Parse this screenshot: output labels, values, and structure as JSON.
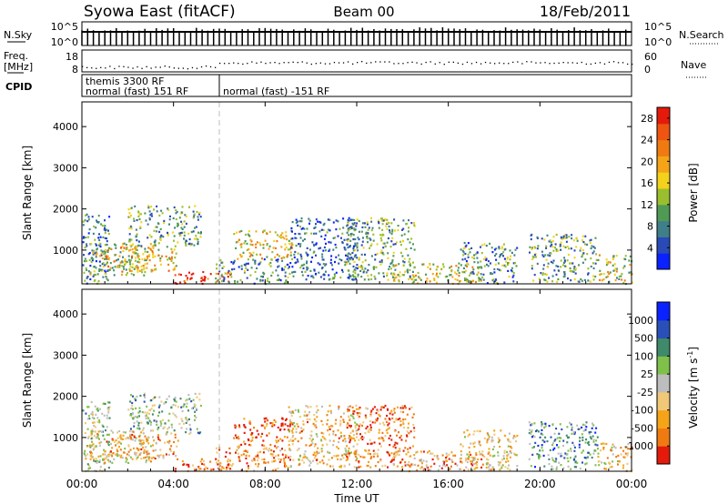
{
  "header": {
    "station": "Syowa East (fitACF)",
    "beam": "Beam 00",
    "date": "18/Feb/2011"
  },
  "panels": {
    "nsky": {
      "label": "N.Sky",
      "ymax_label": "10^5",
      "ymin_label": "10^0",
      "right_label": "N.Search",
      "right_ymax": "10^5",
      "right_ymin": "10^0"
    },
    "freq": {
      "label_line1": "Freq.",
      "label_line2": "[MHz]",
      "ymax": "18",
      "ymin": "8",
      "right_label": "Nave",
      "right_ymax": "60",
      "right_ymin": "0"
    },
    "cpid": {
      "label": "CPID",
      "segments": [
        {
          "line1": "themis 3300 RF",
          "line2": "normal (fast) 151 RF",
          "start_hour": 0
        },
        {
          "line1": "",
          "line2": "normal (fast) -151 RF",
          "start_hour": 6
        }
      ]
    }
  },
  "chart_data": [
    {
      "type": "heatmap",
      "name": "power",
      "xlabel": "Time UT",
      "ylabel": "Slant Range [km]",
      "x_ticks": [
        "00:00",
        "04:00",
        "08:00",
        "12:00",
        "16:00",
        "20:00",
        "00:00"
      ],
      "x_range_hours": [
        0,
        24
      ],
      "y_range_km": [
        180,
        4600
      ],
      "y_ticks": [
        1000,
        2000,
        3000,
        4000
      ],
      "colorbar": {
        "label": "Power [dB]",
        "range": [
          0,
          30
        ],
        "ticks": [
          "4",
          "8",
          "12",
          "16",
          "20",
          "24",
          "28"
        ],
        "colors": [
          "#0a22ff",
          "#2a4ab8",
          "#3f7f8a",
          "#4f9a55",
          "#9bbe2e",
          "#f2d21a",
          "#f5a418",
          "#f07a12",
          "#ee5510",
          "#e41a0b"
        ]
      },
      "echo_regions": [
        {
          "t0": 0.0,
          "t1": 1.2,
          "r0": 200,
          "r1": 1900,
          "level": 0.25
        },
        {
          "t0": 0.3,
          "t1": 3.0,
          "r0": 400,
          "r1": 1200,
          "level": 0.45
        },
        {
          "t0": 1.0,
          "t1": 4.2,
          "r0": 500,
          "r1": 1100,
          "level": 0.6
        },
        {
          "t0": 2.0,
          "t1": 5.2,
          "r0": 1100,
          "r1": 2100,
          "level": 0.35
        },
        {
          "t0": 4.0,
          "t1": 6.5,
          "r0": 200,
          "r1": 500,
          "level": 0.9
        },
        {
          "t0": 5.8,
          "t1": 9.0,
          "r0": 200,
          "r1": 800,
          "level": 0.3
        },
        {
          "t0": 6.6,
          "t1": 9.2,
          "r0": 800,
          "r1": 1500,
          "level": 0.55
        },
        {
          "t0": 9.0,
          "t1": 12.0,
          "r0": 300,
          "r1": 1800,
          "level": 0.2
        },
        {
          "t0": 11.5,
          "t1": 14.5,
          "r0": 300,
          "r1": 1800,
          "level": 0.35
        },
        {
          "t0": 13.5,
          "t1": 17.5,
          "r0": 200,
          "r1": 700,
          "level": 0.55
        },
        {
          "t0": 16.5,
          "t1": 19.0,
          "r0": 200,
          "r1": 1200,
          "level": 0.3
        },
        {
          "t0": 19.5,
          "t1": 22.5,
          "r0": 250,
          "r1": 1400,
          "level": 0.35
        },
        {
          "t0": 22.5,
          "t1": 24.0,
          "r0": 200,
          "r1": 900,
          "level": 0.5
        }
      ]
    },
    {
      "type": "heatmap",
      "name": "velocity",
      "xlabel": "Time UT",
      "ylabel": "Slant Range [km]",
      "x_ticks": [
        "00:00",
        "04:00",
        "08:00",
        "12:00",
        "16:00",
        "20:00",
        "00:00"
      ],
      "x_range_hours": [
        0,
        24
      ],
      "y_range_km": [
        180,
        4600
      ],
      "y_ticks": [
        1000,
        2000,
        3000,
        4000
      ],
      "colorbar": {
        "label": "Velocity [m s",
        "label_exp": "-1",
        "label_end": "]",
        "ticks": [
          "-1000",
          "-500",
          "-100",
          "-25",
          "25",
          "100",
          "500",
          "1000"
        ],
        "colors": [
          "#e41a0b",
          "#f07a12",
          "#f5a418",
          "#f0c878",
          "#bdbdbd",
          "#7fc04a",
          "#3f8a6a",
          "#2a50b8",
          "#0a22ff"
        ]
      },
      "echo_regions": [
        {
          "t0": 0.0,
          "t1": 1.2,
          "r0": 200,
          "r1": 1900,
          "level": 0.55
        },
        {
          "t0": 0.3,
          "t1": 3.0,
          "r0": 400,
          "r1": 1200,
          "level": 0.4
        },
        {
          "t0": 1.0,
          "t1": 4.2,
          "r0": 500,
          "r1": 1100,
          "level": 0.3
        },
        {
          "t0": 2.0,
          "t1": 5.2,
          "r0": 1100,
          "r1": 2100,
          "level": 0.6
        },
        {
          "t0": 4.0,
          "t1": 6.5,
          "r0": 200,
          "r1": 500,
          "level": 0.2
        },
        {
          "t0": 5.8,
          "t1": 9.0,
          "r0": 200,
          "r1": 800,
          "level": 0.25
        },
        {
          "t0": 6.6,
          "t1": 9.2,
          "r0": 800,
          "r1": 1500,
          "level": 0.1
        },
        {
          "t0": 9.0,
          "t1": 12.0,
          "r0": 300,
          "r1": 1800,
          "level": 0.35
        },
        {
          "t0": 11.5,
          "t1": 14.5,
          "r0": 300,
          "r1": 1800,
          "level": 0.2
        },
        {
          "t0": 13.5,
          "t1": 17.5,
          "r0": 200,
          "r1": 700,
          "level": 0.3
        },
        {
          "t0": 16.5,
          "t1": 19.0,
          "r0": 200,
          "r1": 1200,
          "level": 0.4
        },
        {
          "t0": 19.5,
          "t1": 22.5,
          "r0": 250,
          "r1": 1400,
          "level": 0.7
        },
        {
          "t0": 22.5,
          "t1": 24.0,
          "r0": 200,
          "r1": 900,
          "level": 0.35
        }
      ]
    }
  ]
}
